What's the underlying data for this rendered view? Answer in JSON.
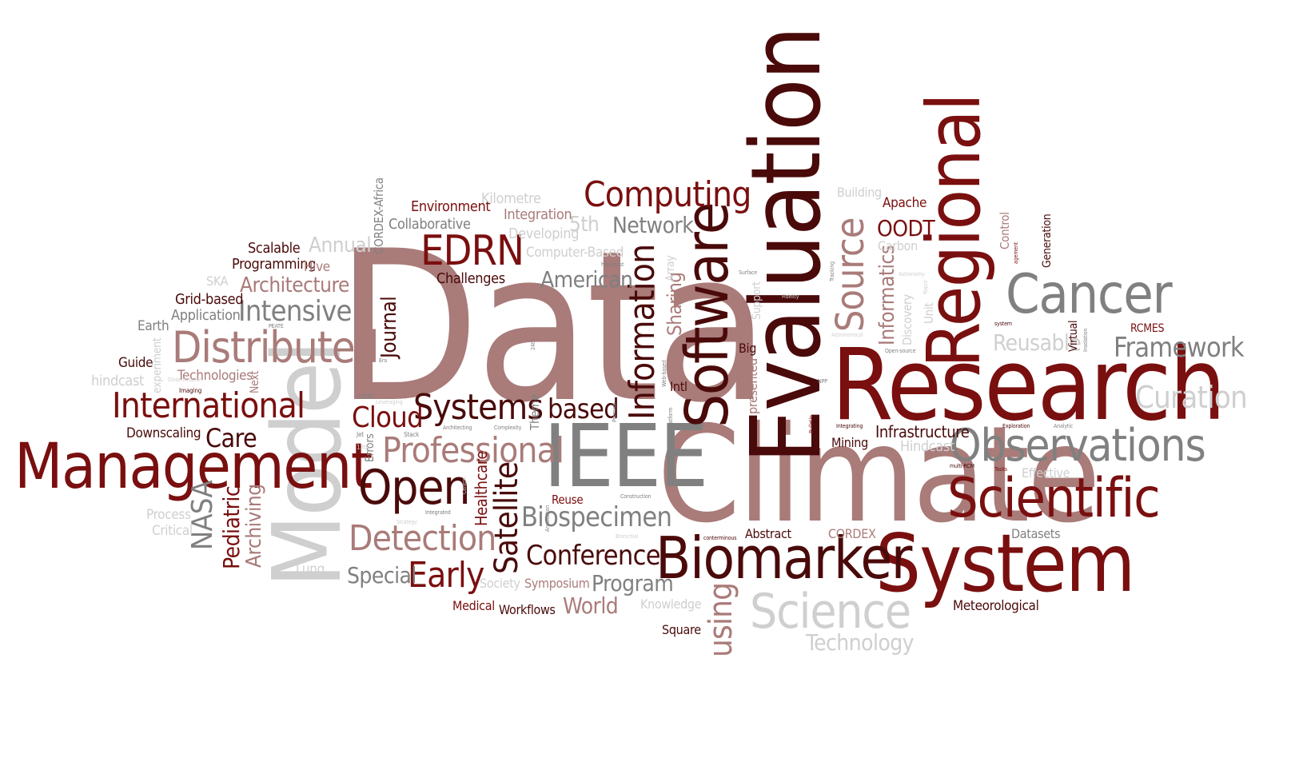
{
  "words": {
    "data": "Data",
    "climate": "Climate",
    "research": "Research",
    "evaluation": "Evaluation",
    "model": "Model",
    "system": "System",
    "regional": "Regional",
    "ieee": "IEEE",
    "software": "Software",
    "management": "Management",
    "biomarker": "Biomarker",
    "cancer": "Cancer",
    "scientific": "Scientific",
    "observations": "Observations",
    "science": "Science",
    "distributed": "Distributed",
    "international": "International",
    "information": "Information",
    "computing": "Computing",
    "open": "Open",
    "detection": "Detection",
    "professional": "Professional",
    "systems": "Systems",
    "edrn": "EDRN",
    "framework": "Framework",
    "curation": "Curation",
    "source": "Source",
    "early": "Early",
    "conference": "Conference",
    "satellite": "Satellite",
    "biospecimen": "Biospecimen",
    "cloud": "Cloud",
    "intensive": "Intensive",
    "nasa": "NASA",
    "based": "based",
    "care": "Care",
    "using": "using",
    "american": "American",
    "network": "Network",
    "architecture": "Architecture",
    "reusable": "Reusable",
    "oodt": "OODT",
    "informatics": "Informatics",
    "technology": "Technology",
    "program": "Program",
    "special": "Special",
    "world": "World",
    "pediatric": "Pediatric",
    "archiving": "Archiving",
    "annual": "Annual",
    "fifth": "5th",
    "journal": "Journal",
    "sharing": "Sharing",
    "infrastructure": "Infrastructure",
    "hindcast_cap": "Hindcast",
    "healthcare": "Healthcare",
    "environment": "Environment",
    "collaborative": "Collaborative",
    "kilometre": "Kilometre",
    "integration": "Integration",
    "developing": "Developing",
    "computer_based": "Computer-Based",
    "challenges": "Challenges",
    "scalable": "Scalable",
    "programming": "Programming",
    "hive": "Hive",
    "grid_based": "Grid-based",
    "application": "Application",
    "ska": "SKA",
    "earth": "Earth",
    "guide": "Guide",
    "hindcast": "hindcast",
    "technologies": "Technologies",
    "downscaling": "Downscaling",
    "process": "Process",
    "critical": "Critical",
    "lung": "Lung",
    "cordex_africa": "CORDEX-Africa",
    "apache": "Apache",
    "building": "Building",
    "carbon": "Carbon",
    "control": "Control",
    "generation": "Generation",
    "rcmes": "RCMES",
    "virtual": "Virtual",
    "unit": "Unit",
    "discovery": "Discovery",
    "big": "Big",
    "presented": "presented",
    "support": "Support",
    "intl": "Intl",
    "mining": "Mining",
    "datasets": "Datasets",
    "effective": "Effective",
    "meteorological": "Meteorological",
    "cordex": "CORDEX",
    "abstract": "Abstract",
    "knowledge": "Knowledge",
    "square": "Square",
    "symposium": "Symposium",
    "society": "Society",
    "medical": "Medical",
    "workflows": "Workflows",
    "reuse": "Reuse",
    "theme": "Theme",
    "errors": "Errors",
    "next": "Next",
    "experiment": "experiment",
    "array": "Array",
    "imaging": "Imaging",
    "cbms": "CBMS",
    "leveraging": "Leveraging",
    "jet": "Jet",
    "stack": "Stack",
    "architecting": "Architecting",
    "complexity": "Complexity",
    "thirteenth": "13th",
    "era": "Era",
    "integrated": "Integrated",
    "strategy": "Strategy",
    "central": "Central",
    "annotation": "Annotation",
    "construction": "Construction",
    "bronchial": "Bronchial",
    "capacity": "Capacity",
    "conterminous": "conterminous",
    "platform": "Platform",
    "web_based": "Web-based",
    "promise": "Promise",
    "twentyfourth": "24th",
    "hindmost": "hindmost",
    "surface": "Surface",
    "fidelity": "Fidelity",
    "tracking": "Tracking",
    "astronomical": "Astronomical",
    "npp": "NPP",
    "bulletin": "Bulletin",
    "integrating": "Integrating",
    "exploration": "Exploration",
    "analytic": "Analytic",
    "multi_rcm": "multi-RCM",
    "tasks": "Tasks",
    "open_source": "Open-source",
    "astronomy": "Astronomy",
    "rapid": "Rapid",
    "system_small": "system",
    "agement": "agement",
    "insolation": "Insolation",
    "peate": "PEATE",
    "dissemination": "Dissemination"
  },
  "colors": {
    "dark_red": "#7a0f0f",
    "maroon": "#4a0a0a",
    "dusty_rose": "#a97b79",
    "gray": "#808080",
    "light_gray": "#cfcfcf"
  }
}
